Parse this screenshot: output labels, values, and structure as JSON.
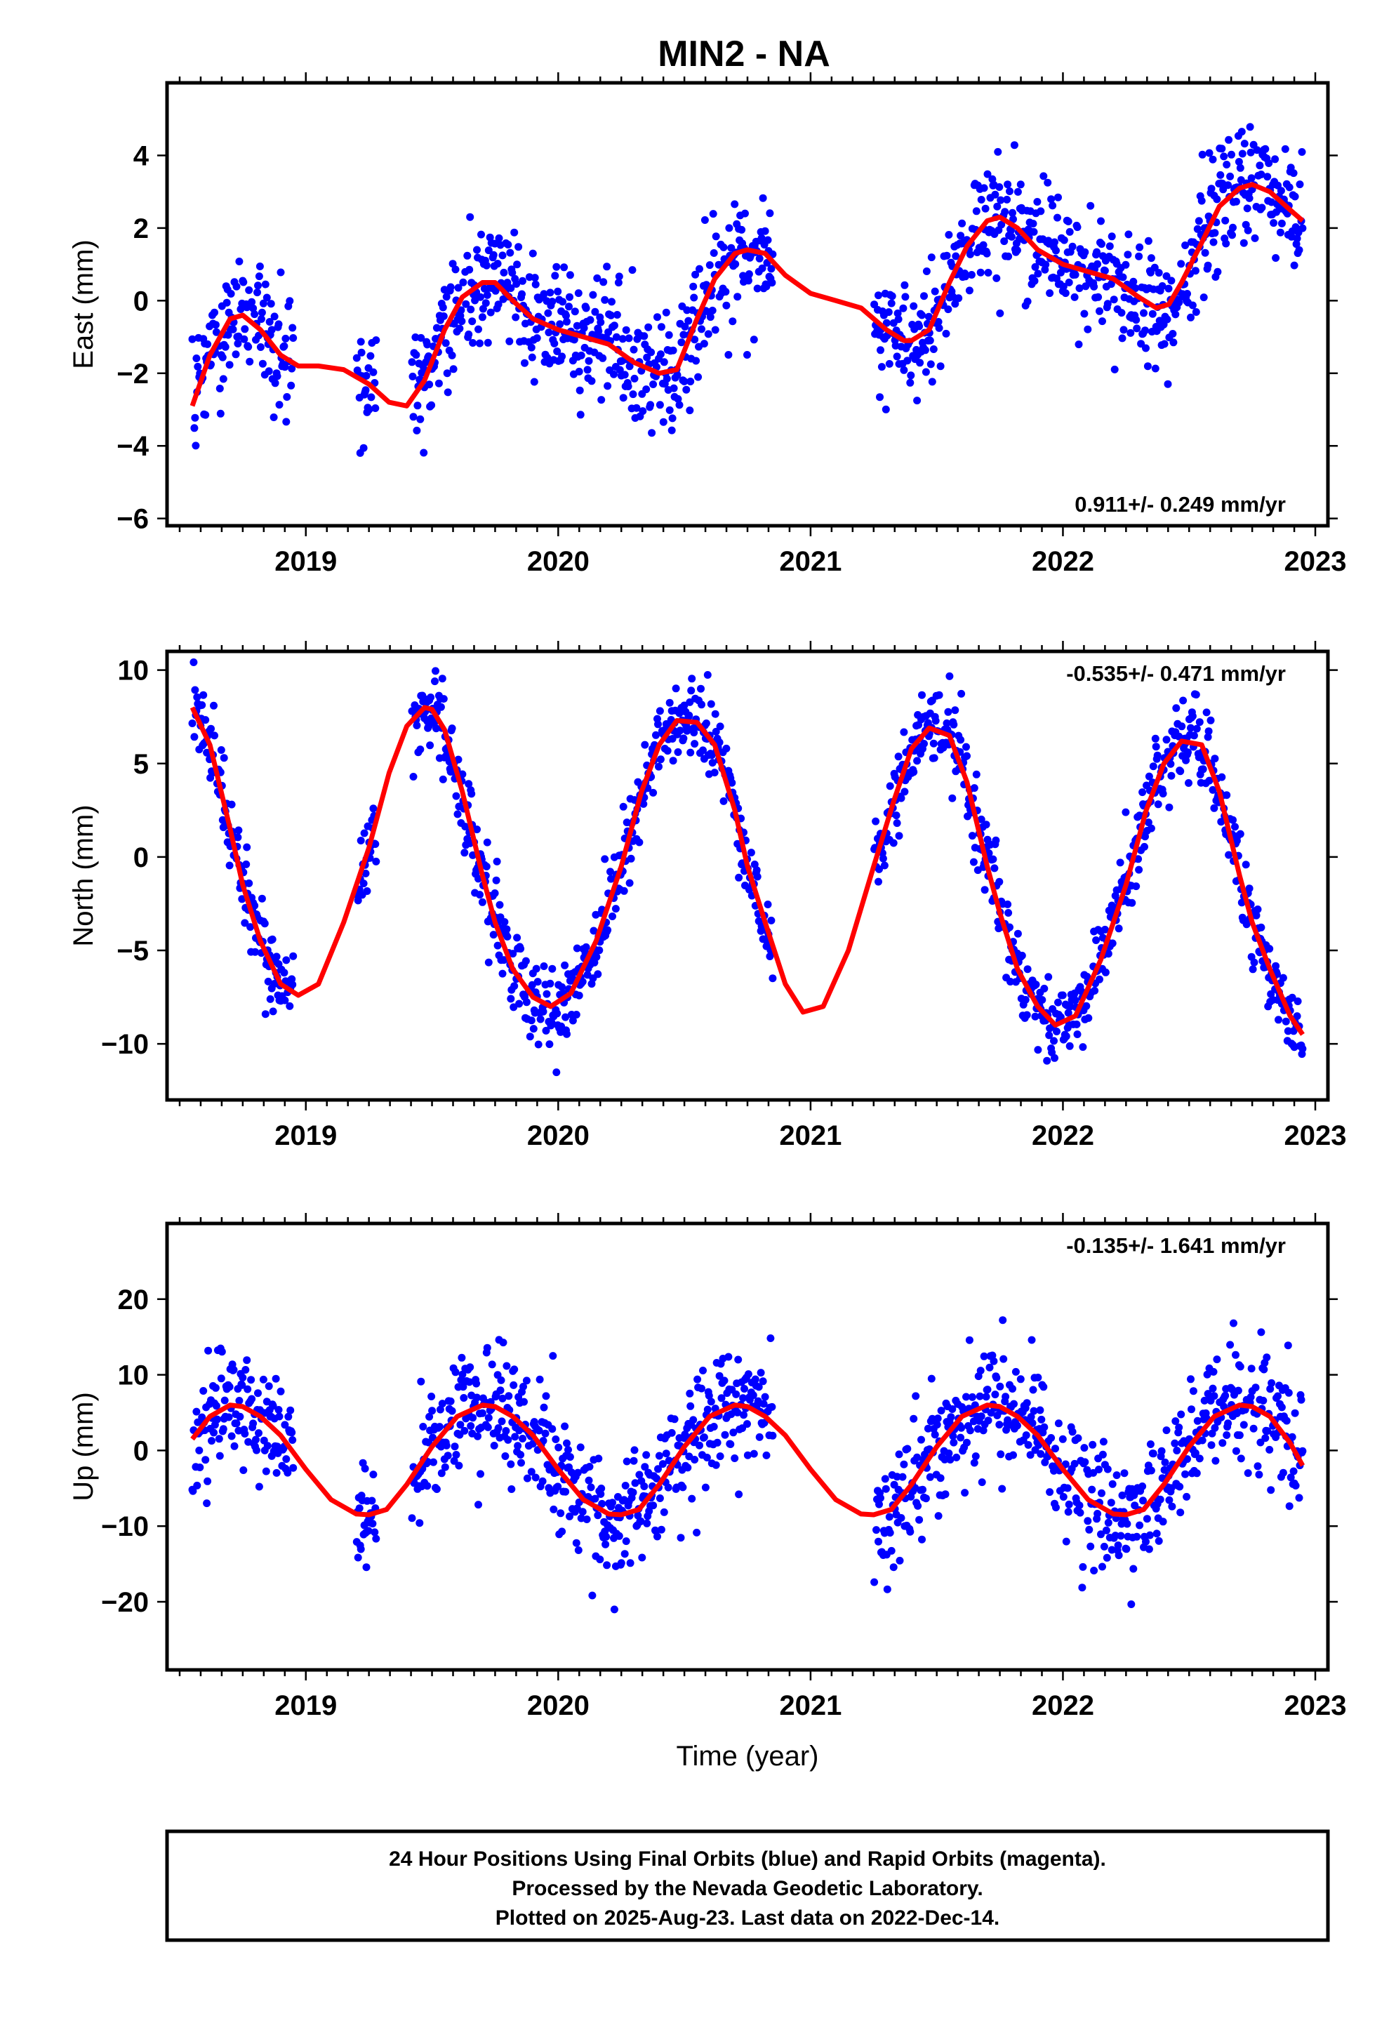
{
  "title": "MIN2 - NA",
  "colors": {
    "points": "#0000ff",
    "fit": "#ff0000",
    "frame": "#000000"
  },
  "caption": [
    "24 Hour Positions Using Final Orbits (blue) and Rapid Orbits (magenta).",
    "Processed by the Nevada Geodetic Laboratory.",
    "Plotted on 2025-Aug-23. Last data on 2022-Dec-14."
  ],
  "chart_data": [
    {
      "type": "scatter",
      "component": "east",
      "ylabel": "East (mm)",
      "xlabel": "",
      "xlim": [
        2018.45,
        2023.05
      ],
      "ylim": [
        -6.2,
        6.0
      ],
      "x_ticks": [
        2019,
        2020,
        2021,
        2022,
        2023
      ],
      "y_ticks": [
        4,
        2,
        0,
        -2,
        -4,
        -6
      ],
      "y_tick_labels": [
        "4",
        "2",
        "0",
        "−2",
        "−4",
        "−6"
      ],
      "rate_label": "0.911+/- 0.249 mm/yr",
      "rate_position": "bottom-right",
      "data_gaps": [
        [
          2018.95,
          2019.2
        ],
        [
          2019.28,
          2019.42
        ],
        [
          2020.85,
          2021.25
        ]
      ],
      "noise_mm": 0.8,
      "fit": {
        "x": [
          2018.55,
          2018.62,
          2018.7,
          2018.75,
          2018.82,
          2018.9,
          2018.97,
          2019.05,
          2019.15,
          2019.25,
          2019.33,
          2019.4,
          2019.47,
          2019.55,
          2019.62,
          2019.7,
          2019.75,
          2019.82,
          2019.9,
          2020.0,
          2020.1,
          2020.2,
          2020.3,
          2020.4,
          2020.47,
          2020.55,
          2020.62,
          2020.7,
          2020.75,
          2020.82,
          2020.9,
          2021.0,
          2021.1,
          2021.2,
          2021.3,
          2021.37,
          2021.4,
          2021.47,
          2021.55,
          2021.62,
          2021.7,
          2021.75,
          2021.82,
          2021.9,
          2022.0,
          2022.1,
          2022.2,
          2022.3,
          2022.37,
          2022.42,
          2022.47,
          2022.55,
          2022.62,
          2022.7,
          2022.75,
          2022.82,
          2022.9,
          2022.95
        ],
        "y": [
          -2.9,
          -1.5,
          -0.5,
          -0.4,
          -0.8,
          -1.5,
          -1.8,
          -1.8,
          -1.9,
          -2.3,
          -2.8,
          -2.9,
          -2.2,
          -0.8,
          0.1,
          0.5,
          0.5,
          0.0,
          -0.5,
          -0.8,
          -1.0,
          -1.2,
          -1.7,
          -2.0,
          -1.9,
          -0.5,
          0.6,
          1.3,
          1.4,
          1.3,
          0.7,
          0.2,
          0.0,
          -0.2,
          -0.8,
          -1.1,
          -1.1,
          -0.8,
          0.5,
          1.5,
          2.2,
          2.3,
          2.0,
          1.4,
          1.0,
          0.8,
          0.6,
          0.1,
          -0.2,
          -0.1,
          0.5,
          1.6,
          2.6,
          3.1,
          3.2,
          3.0,
          2.5,
          2.2
        ]
      }
    },
    {
      "type": "scatter",
      "component": "north",
      "ylabel": "North (mm)",
      "xlabel": "",
      "xlim": [
        2018.45,
        2023.05
      ],
      "ylim": [
        -13.0,
        11.0
      ],
      "x_ticks": [
        2019,
        2020,
        2021,
        2022,
        2023
      ],
      "y_ticks": [
        10,
        5,
        0,
        -5,
        -10
      ],
      "y_tick_labels": [
        "10",
        "5",
        "0",
        "−5",
        "−10"
      ],
      "rate_label": "-0.535+/- 0.471 mm/yr",
      "rate_position": "top-right",
      "data_gaps": [
        [
          2018.95,
          2019.2
        ],
        [
          2019.28,
          2019.42
        ],
        [
          2020.85,
          2021.25
        ]
      ],
      "noise_mm": 1.1,
      "fit": {
        "x": [
          2018.55,
          2018.62,
          2018.7,
          2018.75,
          2018.82,
          2018.9,
          2018.97,
          2019.05,
          2019.15,
          2019.25,
          2019.33,
          2019.4,
          2019.47,
          2019.5,
          2019.55,
          2019.62,
          2019.7,
          2019.75,
          2019.82,
          2019.9,
          2019.97,
          2020.05,
          2020.15,
          2020.25,
          2020.33,
          2020.4,
          2020.47,
          2020.55,
          2020.62,
          2020.7,
          2020.75,
          2020.82,
          2020.9,
          2020.97,
          2021.05,
          2021.15,
          2021.25,
          2021.33,
          2021.4,
          2021.47,
          2021.55,
          2021.62,
          2021.7,
          2021.75,
          2021.82,
          2021.9,
          2021.97,
          2022.05,
          2022.15,
          2022.25,
          2022.33,
          2022.4,
          2022.47,
          2022.55,
          2022.62,
          2022.7,
          2022.75,
          2022.82,
          2022.9,
          2022.95
        ],
        "y": [
          8.0,
          6.0,
          1.5,
          -1.5,
          -4.5,
          -6.8,
          -7.4,
          -6.8,
          -3.5,
          0.5,
          4.5,
          7.0,
          8.0,
          7.9,
          6.8,
          3.5,
          -1.0,
          -3.5,
          -6.0,
          -7.5,
          -8.0,
          -7.3,
          -4.5,
          -0.5,
          3.5,
          6.0,
          7.3,
          7.2,
          6.0,
          2.5,
          -0.5,
          -3.5,
          -6.8,
          -8.3,
          -8.0,
          -5.0,
          -0.5,
          3.0,
          5.8,
          6.9,
          6.5,
          4.0,
          -0.5,
          -3.0,
          -6.0,
          -8.0,
          -9.0,
          -8.5,
          -5.5,
          -1.5,
          2.5,
          5.0,
          6.2,
          6.0,
          3.5,
          -1.0,
          -3.5,
          -6.0,
          -8.5,
          -9.5
        ]
      }
    },
    {
      "type": "scatter",
      "component": "up",
      "ylabel": "Up (mm)",
      "xlabel": "Time (year)",
      "xlim": [
        2018.45,
        2023.05
      ],
      "ylim": [
        -29,
        30
      ],
      "x_ticks": [
        2019,
        2020,
        2021,
        2022,
        2023
      ],
      "y_ticks": [
        20,
        10,
        0,
        -10,
        -20
      ],
      "y_tick_labels": [
        "20",
        "10",
        "0",
        "−10",
        "−20"
      ],
      "rate_label": "-0.135+/- 1.641 mm/yr",
      "rate_position": "top-right",
      "data_gaps": [
        [
          2018.95,
          2019.2
        ],
        [
          2019.28,
          2019.42
        ],
        [
          2020.85,
          2021.25
        ]
      ],
      "noise_mm": 4.0,
      "fit": {
        "x": [
          2018.55,
          2018.62,
          2018.7,
          2018.75,
          2018.82,
          2018.9,
          2019.0,
          2019.1,
          2019.2,
          2019.25,
          2019.32,
          2019.4,
          2019.5,
          2019.6,
          2019.7,
          2019.75,
          2019.82,
          2019.9,
          2020.0,
          2020.1,
          2020.2,
          2020.25,
          2020.32,
          2020.4,
          2020.5,
          2020.6,
          2020.7,
          2020.75,
          2020.82,
          2020.9,
          2021.0,
          2021.1,
          2021.2,
          2021.25,
          2021.32,
          2021.4,
          2021.5,
          2021.6,
          2021.7,
          2021.75,
          2021.82,
          2021.9,
          2022.0,
          2022.1,
          2022.2,
          2022.25,
          2022.32,
          2022.4,
          2022.5,
          2022.6,
          2022.7,
          2022.75,
          2022.82,
          2022.9,
          2022.95
        ],
        "y": [
          1.5,
          4.5,
          6.0,
          5.8,
          4.5,
          2.0,
          -2.5,
          -6.5,
          -8.4,
          -8.5,
          -7.8,
          -4.5,
          0.5,
          4.5,
          6.0,
          5.8,
          4.5,
          2.0,
          -2.5,
          -6.5,
          -8.4,
          -8.5,
          -7.8,
          -4.5,
          0.5,
          4.5,
          6.0,
          5.8,
          4.5,
          2.0,
          -2.5,
          -6.5,
          -8.4,
          -8.5,
          -7.8,
          -4.5,
          0.5,
          4.5,
          6.0,
          5.8,
          4.5,
          2.0,
          -2.5,
          -6.5,
          -8.4,
          -8.5,
          -7.8,
          -4.5,
          0.5,
          4.5,
          6.0,
          5.8,
          4.5,
          1.0,
          -2.0
        ]
      }
    }
  ]
}
